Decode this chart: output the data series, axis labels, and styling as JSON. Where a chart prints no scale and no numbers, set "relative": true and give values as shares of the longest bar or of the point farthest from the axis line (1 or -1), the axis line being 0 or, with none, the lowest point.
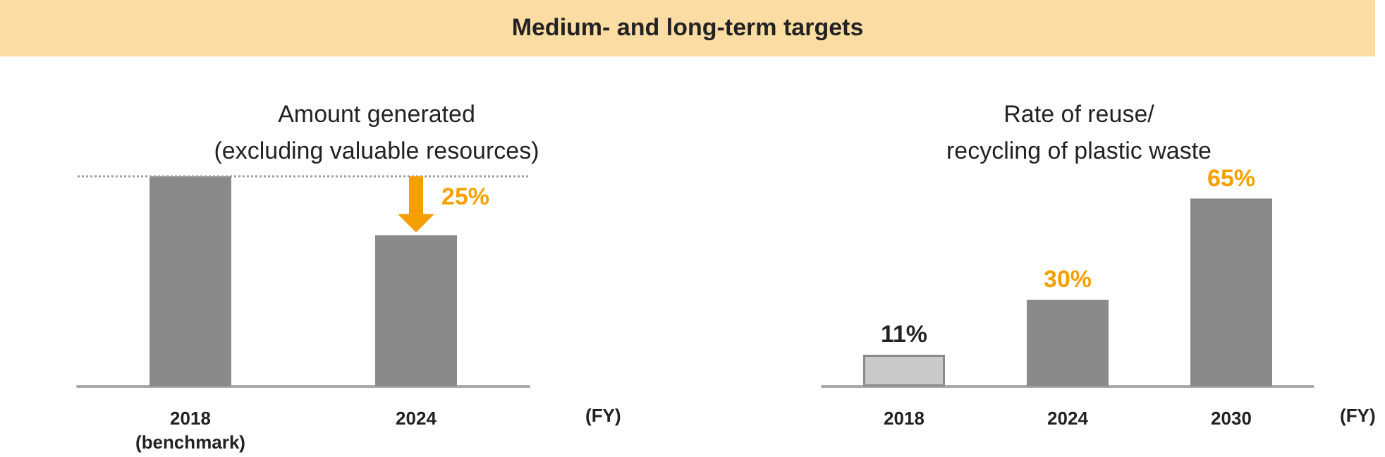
{
  "chart_data": [
    {
      "type": "other",
      "title": "Medium- and long-term targets"
    },
    {
      "type": "bar",
      "title": "Amount generated\n(excluding valuable resources)",
      "xlabel": "(FY)",
      "categories": [
        "2018\n(benchmark)",
        "2024"
      ],
      "values": [
        1,
        0.72
      ],
      "color": "#8a8a8a",
      "relative": true,
      "ref_lines": [
        {
          "axis": "y",
          "value": 1,
          "color": "#a0a0a0",
          "line_style": "dotted"
        }
      ],
      "annotations": [
        {
          "text": "25%",
          "x": "2024",
          "y": 1
        }
      ]
    },
    {
      "type": "bar",
      "title": "Rate of reuse/\nrecycling of plastic waste",
      "xlabel": "(FY)",
      "categories": [
        "2018",
        "2024",
        "2030"
      ],
      "values": [
        11,
        30,
        65
      ],
      "colors": [
        "#cacaca",
        "#8a8a8a",
        "#8a8a8a"
      ],
      "tick_labels": "x",
      "value_labels": [
        "11%",
        "30%",
        "65%"
      ]
    }
  ]
}
